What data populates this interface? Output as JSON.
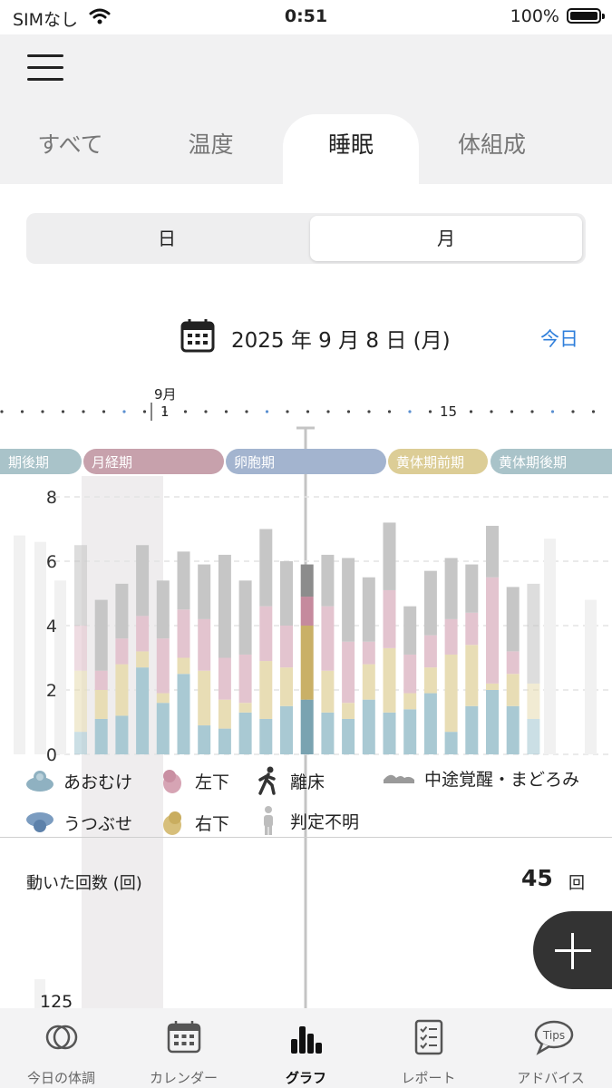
{
  "status_bar": {
    "carrier": "SIMなし",
    "time": "0:51",
    "battery": "100%"
  },
  "tabs": [
    {
      "label": "すべて",
      "active": false
    },
    {
      "label": "温度",
      "active": false
    },
    {
      "label": "睡眠",
      "active": true
    },
    {
      "label": "体組成",
      "active": false
    }
  ],
  "segment": {
    "day": "日",
    "month": "月",
    "selected": "月"
  },
  "date": {
    "text": "2025 年 9 月 8 日 (月)",
    "today_label": "今日"
  },
  "timeline": {
    "month_label": "9月",
    "day_1": "1",
    "day_15": "15"
  },
  "phases": [
    {
      "label": "期後期",
      "color": "#a9c3c9"
    },
    {
      "label": "月経期",
      "color": "#c7a1ac"
    },
    {
      "label": "卵胞期",
      "color": "#a3b4cf"
    },
    {
      "label": "黄体期前期",
      "color": "#dccd96"
    },
    {
      "label": "黄体期後期",
      "color": "#a9c3c9"
    }
  ],
  "chart_data": {
    "type": "bar",
    "stacked": true,
    "ylim": [
      0,
      8
    ],
    "yticks": [
      "0",
      "2",
      "4",
      "6",
      "8"
    ],
    "series_colors": {
      "あおむけ": "#a9c9d3",
      "右下": "#e8ddb5",
      "左下": "#e3c4cf",
      "中途覚醒・まどろみ": "#c6c6c6"
    },
    "bars": [
      {
        "values": [
          0.7,
          1.9,
          1.4,
          2.5
        ]
      },
      {
        "values": [
          1.1,
          0.9,
          0.6,
          2.2
        ]
      },
      {
        "values": [
          1.2,
          1.6,
          0.8,
          1.7
        ]
      },
      {
        "values": [
          2.7,
          0.5,
          1.1,
          2.2
        ]
      },
      {
        "values": [
          1.6,
          0.3,
          1.7,
          1.8
        ]
      },
      {
        "values": [
          2.5,
          0.5,
          1.5,
          1.8
        ]
      },
      {
        "values": [
          0.9,
          1.7,
          1.6,
          1.7
        ]
      },
      {
        "values": [
          0.8,
          0.9,
          1.3,
          3.2
        ]
      },
      {
        "values": [
          1.3,
          0.3,
          1.5,
          2.3
        ]
      },
      {
        "values": [
          1.1,
          1.8,
          1.7,
          2.4
        ]
      },
      {
        "values": [
          1.5,
          1.2,
          1.3,
          2.0
        ]
      },
      {
        "values": [
          1.7,
          2.3,
          0.9,
          1.0
        ]
      },
      {
        "values": [
          1.3,
          1.3,
          2.0,
          1.6
        ]
      },
      {
        "values": [
          1.1,
          0.5,
          1.9,
          2.6
        ]
      },
      {
        "values": [
          1.7,
          1.1,
          0.7,
          2.0
        ]
      },
      {
        "values": [
          1.3,
          2.0,
          1.8,
          2.1
        ]
      },
      {
        "values": [
          1.4,
          0.5,
          1.2,
          1.5
        ]
      },
      {
        "values": [
          1.9,
          0.8,
          1.0,
          2.0
        ]
      },
      {
        "values": [
          0.7,
          2.4,
          1.1,
          1.9
        ]
      },
      {
        "values": [
          1.5,
          1.9,
          1.0,
          1.5
        ]
      },
      {
        "values": [
          2.0,
          0.2,
          3.3,
          1.6
        ]
      },
      {
        "values": [
          1.5,
          1.0,
          0.7,
          2.0
        ]
      },
      {
        "values": [
          1.1,
          1.1,
          0.0,
          3.1
        ]
      }
    ]
  },
  "legend": [
    {
      "label": "あおむけ",
      "icon": "supine-icon",
      "color": "#8fb1c1"
    },
    {
      "label": "左下",
      "icon": "left-side-icon",
      "color": "#d6a4b4"
    },
    {
      "label": "離床",
      "icon": "walking-icon",
      "color": "#333333"
    },
    {
      "label": "中途覚醒・まどろみ",
      "icon": "awake-icon",
      "color": "#9a9a9a"
    },
    {
      "label": "うつぶせ",
      "icon": "prone-icon",
      "color": "#7b9cc0"
    },
    {
      "label": "右下",
      "icon": "right-side-icon",
      "color": "#d7bf7b"
    },
    {
      "label": "判定不明",
      "icon": "unknown-person-icon",
      "color": "#bdbdbd"
    }
  ],
  "movement": {
    "label": "動いた回数 (回)",
    "value": "45",
    "unit": "回",
    "y_tick": "125"
  },
  "nav": [
    {
      "label": "今日の体調",
      "icon": "condition-icon",
      "active": false
    },
    {
      "label": "カレンダー",
      "icon": "calendar-icon",
      "active": false
    },
    {
      "label": "グラフ",
      "icon": "graph-icon",
      "active": true
    },
    {
      "label": "レポート",
      "icon": "report-icon",
      "active": false
    },
    {
      "label": "アドバイス",
      "icon": "tips-icon",
      "active": false
    }
  ]
}
